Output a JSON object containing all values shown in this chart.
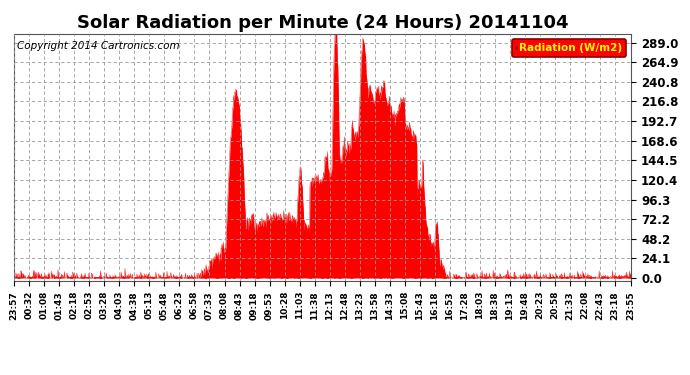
{
  "title": "Solar Radiation per Minute (24 Hours) 20141104",
  "copyright_text": "Copyright 2014 Cartronics.com",
  "legend_label": "Radiation (W/m2)",
  "yticks": [
    0.0,
    24.1,
    48.2,
    72.2,
    96.3,
    120.4,
    144.5,
    168.6,
    192.7,
    216.8,
    240.8,
    264.9,
    289.0
  ],
  "ymax": 300,
  "ymin": -4,
  "fill_color": "#FF0000",
  "line_color": "#FF0000",
  "background_color": "#FFFFFF",
  "grid_color": "#999999",
  "zero_line_color": "#FF0000",
  "legend_bg": "#FF0000",
  "legend_text_color": "#FFFF00",
  "title_fontsize": 13,
  "copyright_fontsize": 7.5,
  "xtick_fontsize": 6.5,
  "ytick_fontsize": 8.5,
  "n_minutes": 1440,
  "time_labels": [
    "23:57",
    "00:32",
    "01:08",
    "01:43",
    "02:18",
    "02:53",
    "03:28",
    "04:03",
    "04:38",
    "05:13",
    "05:48",
    "06:23",
    "06:58",
    "07:33",
    "08:08",
    "08:43",
    "09:18",
    "09:53",
    "10:28",
    "11:03",
    "11:38",
    "12:13",
    "12:48",
    "13:23",
    "13:58",
    "14:33",
    "15:08",
    "15:43",
    "16:18",
    "16:53",
    "17:28",
    "18:03",
    "18:38",
    "19:13",
    "19:48",
    "20:23",
    "20:58",
    "21:33",
    "22:08",
    "22:43",
    "23:18",
    "23:55"
  ]
}
